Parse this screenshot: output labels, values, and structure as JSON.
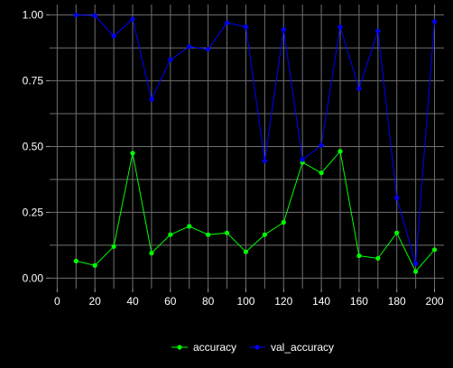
{
  "chart_data": {
    "type": "line",
    "background": "#000000",
    "grid": true,
    "grid_color": "#6f6f6f",
    "legend_position": "bottom",
    "xlim": [
      -4,
      205
    ],
    "ylim": [
      -0.04,
      1.04
    ],
    "x_ticks": [
      0,
      20,
      40,
      60,
      80,
      100,
      120,
      140,
      160,
      180,
      200
    ],
    "x_tick_labels": [
      "0",
      "20",
      "40",
      "60",
      "80",
      "100",
      "120",
      "140",
      "160",
      "180",
      "200"
    ],
    "y_ticks": [
      0.0,
      0.25,
      0.5,
      0.75,
      1.0
    ],
    "y_tick_labels": [
      "0.00",
      "0.25",
      "0.50",
      "0.75",
      "1.00"
    ],
    "x": [
      10,
      20,
      30,
      40,
      50,
      60,
      70,
      80,
      90,
      100,
      110,
      120,
      130,
      140,
      150,
      160,
      170,
      180,
      190,
      200
    ],
    "series": [
      {
        "name": "accuracy",
        "color": "#00ff00",
        "values": [
          0.065,
          0.048,
          0.12,
          0.475,
          0.095,
          0.165,
          0.197,
          0.165,
          0.172,
          0.1,
          0.165,
          0.212,
          0.44,
          0.4,
          0.482,
          0.085,
          0.075,
          0.172,
          0.025,
          0.108
        ]
      },
      {
        "name": "val_accuracy",
        "color": "#0000ff",
        "values": [
          1.0,
          0.998,
          0.92,
          0.985,
          0.68,
          0.83,
          0.88,
          0.87,
          0.97,
          0.955,
          0.445,
          0.945,
          0.45,
          0.505,
          0.955,
          0.72,
          0.94,
          0.305,
          0.055,
          0.975
        ]
      }
    ],
    "title": "",
    "xlabel": "",
    "ylabel": ""
  }
}
